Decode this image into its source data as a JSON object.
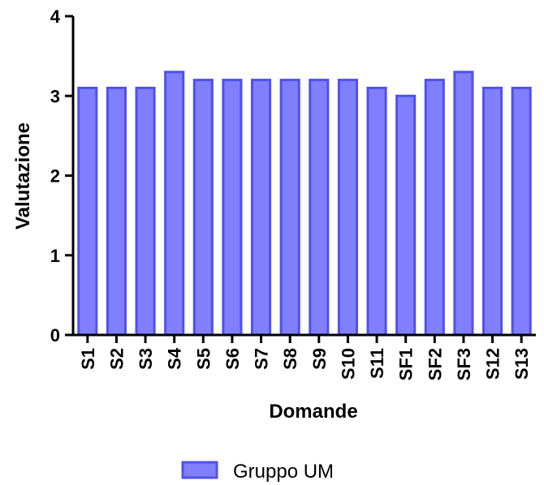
{
  "chart_data": {
    "type": "bar",
    "categories": [
      "S1",
      "S2",
      "S3",
      "S4",
      "S5",
      "S6",
      "S7",
      "S8",
      "S9",
      "S10",
      "S11",
      "SF1",
      "SF2",
      "SF3",
      "S12",
      "S13"
    ],
    "series": [
      {
        "name": "Gruppo UM",
        "values": [
          3.1,
          3.1,
          3.1,
          3.3,
          3.2,
          3.2,
          3.2,
          3.2,
          3.2,
          3.2,
          3.1,
          3.0,
          3.2,
          3.3,
          3.1,
          3.1
        ]
      }
    ],
    "xlabel": "Domande",
    "ylabel": "Valutazione",
    "ylim": [
      0,
      4
    ],
    "yticks": [
      "0",
      "1",
      "2",
      "3",
      "4"
    ],
    "grid": false,
    "legend_position": "bottom-center",
    "colors": {
      "bar_fill": "#8080ff",
      "bar_stroke": "#5050ee",
      "axis": "#000000"
    }
  }
}
